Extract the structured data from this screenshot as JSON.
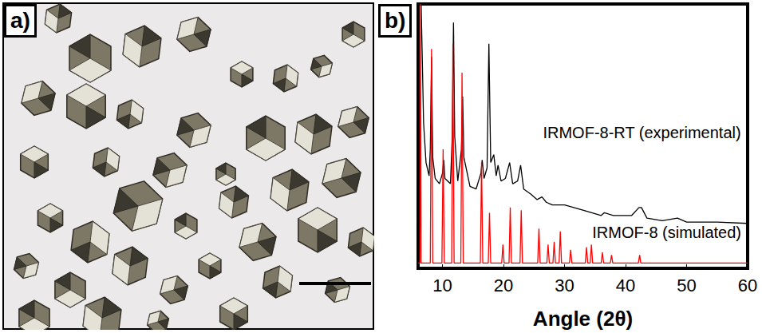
{
  "panel_a": {
    "label": "a)"
  },
  "chart_data": {
    "type": "line",
    "panel_label": "b)",
    "xlabel": "Angle (2θ)",
    "xlim": [
      6,
      60
    ],
    "xticks": [
      10,
      20,
      30,
      40,
      50,
      60
    ],
    "ylim": [
      0,
      100
    ],
    "yticks": [],
    "tick_labels": "x",
    "grid": false,
    "series": [
      {
        "name": "IRMOF-8-RT (experimental)",
        "color": "#000000",
        "x": [
          6.0,
          6.5,
          6.9,
          7.3,
          7.8,
          8.0,
          8.2,
          8.4,
          8.8,
          9.5,
          10.0,
          10.2,
          10.4,
          11.3,
          11.6,
          11.8,
          12.0,
          12.5,
          13.1,
          13.3,
          13.5,
          14.5,
          15.5,
          16.3,
          16.5,
          16.8,
          17.3,
          17.6,
          17.9,
          18.4,
          18.8,
          19.1,
          19.6,
          20.3,
          21.0,
          21.5,
          22.3,
          22.8,
          23.3,
          24.5,
          25.5,
          26.3,
          27.0,
          28.0,
          30.0,
          33.0,
          36.0,
          36.5,
          38.0,
          41.0,
          42.2,
          42.6,
          43.5,
          46.0,
          48.5,
          50.0,
          55.0,
          60.0
        ],
        "values": [
          100,
          100,
          55,
          40,
          35,
          45,
          80,
          42,
          34,
          32,
          36,
          41,
          34,
          32,
          50,
          93,
          50,
          33,
          45,
          65,
          42,
          31,
          30,
          36,
          41,
          34,
          38,
          85,
          40,
          43,
          35,
          39,
          33,
          34,
          40,
          32,
          33,
          39,
          30,
          28,
          26,
          27,
          25,
          24,
          24,
          22,
          20,
          21,
          20,
          20,
          23,
          23,
          19,
          18,
          19,
          17.5,
          17.5,
          17
        ]
      },
      {
        "name": "IRMOF-8 (simulated)",
        "color": "#ff0000",
        "x": [
          6.0,
          6.3,
          6.4,
          6.5,
          8.0,
          8.2,
          8.4,
          9.9,
          10.1,
          10.3,
          11.5,
          11.7,
          11.9,
          13.0,
          13.2,
          13.4,
          16.2,
          16.4,
          16.6,
          17.5,
          17.7,
          17.9,
          19.7,
          19.9,
          20.1,
          20.9,
          21.1,
          21.3,
          22.7,
          22.9,
          23.1,
          25.6,
          25.8,
          26.0,
          27.1,
          27.3,
          27.5,
          28.1,
          28.3,
          28.5,
          29.1,
          29.3,
          29.5,
          30.8,
          31.0,
          31.2,
          33.4,
          33.6,
          33.8,
          34.2,
          34.4,
          34.6,
          36.0,
          36.2,
          36.4,
          37.5,
          37.7,
          37.9,
          42.1,
          42.3,
          42.5,
          60.0
        ],
        "values": [
          2,
          2,
          100,
          2,
          2,
          83,
          2,
          2,
          45,
          2,
          2,
          85,
          2,
          2,
          74,
          2,
          2,
          40,
          2,
          2,
          21,
          2,
          2,
          9,
          2,
          2,
          23,
          2,
          2,
          22,
          2,
          2,
          15,
          2,
          2,
          9,
          2,
          2,
          10,
          2,
          2,
          14,
          2,
          2,
          7,
          2,
          2,
          8,
          2,
          2,
          9,
          2,
          2,
          6,
          2,
          2,
          5,
          2,
          2,
          5,
          2,
          2
        ]
      }
    ]
  }
}
